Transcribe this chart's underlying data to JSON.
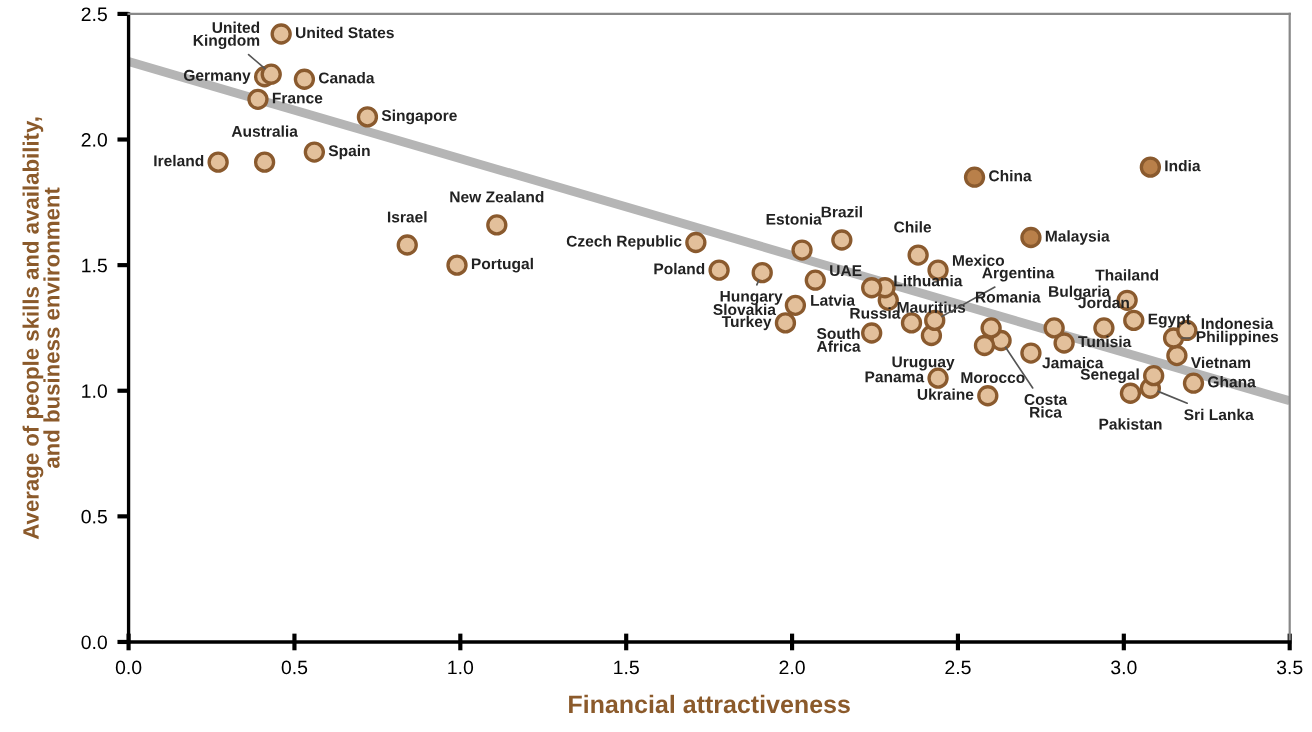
{
  "chart_data": {
    "type": "scatter",
    "xlabel": "Financial attractiveness",
    "ylabel": "Average of people skills and availability,\nand business environment",
    "xlim": [
      0,
      3.5
    ],
    "xticks": [
      {
        "value": 0,
        "label": "0.0"
      },
      0.5,
      {
        "value": 1,
        "label": "1.0"
      },
      1.5,
      {
        "value": 2,
        "label": "2.0"
      },
      2.5,
      {
        "value": 3,
        "label": "3.0"
      },
      3.5
    ],
    "ylim": [
      0,
      2.5
    ],
    "yticks": [
      {
        "value": 0,
        "label": "0.0"
      },
      0.5,
      {
        "value": 1,
        "label": "1.0"
      },
      1.5,
      {
        "value": 2,
        "label": "2.0"
      },
      2.5
    ],
    "grid": false,
    "legend": false,
    "marker": "circle",
    "series": [
      {
        "type": "line",
        "marker": "none",
        "color": "#b5b5b5",
        "x": [
          0,
          3.5
        ],
        "values": [
          2.31,
          0.96
        ]
      },
      {
        "x": [
          0.46,
          0.43,
          0.41,
          0.53,
          0.39,
          0.72,
          0.27,
          0.41,
          0.56,
          0.84,
          1.11,
          0.99,
          1.71,
          1.78,
          1.91,
          2.03,
          2.15,
          2.07,
          2.01,
          1.98,
          2.24,
          2.28,
          2.29,
          2.24,
          2.36,
          2.38,
          2.44,
          2.44,
          2.55,
          3.08,
          2.72,
          2.43,
          2.42,
          2.59,
          2.6,
          2.58,
          2.63,
          2.72,
          2.79,
          2.82,
          2.94,
          3.01,
          3.03,
          3.19,
          3.15,
          3.16,
          3.21,
          3.09,
          3.08,
          3.02
        ],
        "values": [
          2.42,
          2.26,
          2.25,
          2.24,
          2.16,
          2.09,
          1.91,
          1.91,
          1.95,
          1.58,
          1.66,
          1.5,
          1.59,
          1.48,
          1.47,
          1.56,
          1.6,
          1.44,
          1.34,
          1.27,
          1.41,
          1.41,
          1.36,
          1.23,
          1.27,
          1.54,
          1.48,
          1.05,
          1.85,
          1.89,
          1.61,
          1.28,
          1.22,
          0.98,
          1.25,
          1.18,
          1.2,
          1.15,
          1.25,
          1.19,
          1.25,
          1.36,
          1.28,
          1.24,
          1.21,
          1.14,
          1.03,
          1.06,
          1.01,
          0.99
        ],
        "colors": [
          "#e3c09b",
          "#e3c09b",
          "#e3c09b",
          "#e3c09b",
          "#e3c09b",
          "#e3c09b",
          "#e3c09b",
          "#e3c09b",
          "#e3c09b",
          "#e3c09b",
          "#e3c09b",
          "#e3c09b",
          "#e3c09b",
          "#e3c09b",
          "#e3c09b",
          "#e3c09b",
          "#e3c09b",
          "#e3c09b",
          "#e3c09b",
          "#e3c09b",
          "#e3c09b",
          "#e3c09b",
          "#e3c09b",
          "#e3c09b",
          "#e3c09b",
          "#e3c09b",
          "#e3c09b",
          "#e3c09b",
          "#b9804a",
          "#b9804a",
          "#b9804a",
          "#e3c09b",
          "#e3c09b",
          "#e3c09b",
          "#e3c09b",
          "#e3c09b",
          "#e3c09b",
          "#e3c09b",
          "#e3c09b",
          "#e3c09b",
          "#e3c09b",
          "#e3c09b",
          "#e3c09b",
          "#e3c09b",
          "#e3c09b",
          "#e3c09b",
          "#e3c09b",
          "#e3c09b",
          "#e3c09b",
          "#e3c09b"
        ]
      }
    ],
    "annotations": [
      {
        "text": "United States",
        "x": 0.46,
        "y": 2.42
      },
      {
        "text": "United\nKingdom",
        "x": 0.43,
        "y": 2.26
      },
      {
        "text": "Germany",
        "x": 0.41,
        "y": 2.25
      },
      {
        "text": "Canada",
        "x": 0.53,
        "y": 2.24
      },
      {
        "text": "France",
        "x": 0.39,
        "y": 2.16
      },
      {
        "text": "Singapore",
        "x": 0.72,
        "y": 2.09
      },
      {
        "text": "Ireland",
        "x": 0.27,
        "y": 1.91
      },
      {
        "text": "Australia",
        "x": 0.41,
        "y": 1.91
      },
      {
        "text": "Spain",
        "x": 0.56,
        "y": 1.95
      },
      {
        "text": "Israel",
        "x": 0.84,
        "y": 1.58
      },
      {
        "text": "New Zealand",
        "x": 1.11,
        "y": 1.66
      },
      {
        "text": "Portugal",
        "x": 0.99,
        "y": 1.5
      },
      {
        "text": "Czech Republic",
        "x": 1.71,
        "y": 1.59
      },
      {
        "text": "Poland",
        "x": 1.78,
        "y": 1.48
      },
      {
        "text": "Hungary",
        "x": 1.91,
        "y": 1.47
      },
      {
        "text": "Estonia",
        "x": 2.03,
        "y": 1.56
      },
      {
        "text": "Brazil",
        "x": 2.15,
        "y": 1.6
      },
      {
        "text": "UAE",
        "x": 2.07,
        "y": 1.44
      },
      {
        "text": "Slovakia",
        "x": 2.01,
        "y": 1.34
      },
      {
        "text": "Turkey",
        "x": 1.98,
        "y": 1.27
      },
      {
        "text": "Latvia",
        "x": 2.24,
        "y": 1.41
      },
      {
        "text": "Lithuania",
        "x": 2.28,
        "y": 1.41
      },
      {
        "text": "Mauritius",
        "x": 2.29,
        "y": 1.36
      },
      {
        "text": "South\nAfrica",
        "x": 2.24,
        "y": 1.23
      },
      {
        "text": "Russia",
        "x": 2.36,
        "y": 1.27
      },
      {
        "text": "Chile",
        "x": 2.38,
        "y": 1.54
      },
      {
        "text": "Mexico",
        "x": 2.44,
        "y": 1.48
      },
      {
        "text": "Panama",
        "x": 2.44,
        "y": 1.05
      },
      {
        "text": "China",
        "x": 2.55,
        "y": 1.85
      },
      {
        "text": "India",
        "x": 3.08,
        "y": 1.89
      },
      {
        "text": "Malaysia",
        "x": 2.72,
        "y": 1.61
      },
      {
        "text": "Argentina",
        "x": 2.43,
        "y": 1.28
      },
      {
        "text": "Uruguay",
        "x": 2.42,
        "y": 1.22
      },
      {
        "text": "Ukraine",
        "x": 2.59,
        "y": 0.98
      },
      {
        "text": "Romania",
        "x": 2.6,
        "y": 1.25
      },
      {
        "text": "Morocco",
        "x": 2.58,
        "y": 1.18
      },
      {
        "text": "Costa\nRica",
        "x": 2.63,
        "y": 1.2
      },
      {
        "text": "Jamaica",
        "x": 2.72,
        "y": 1.15
      },
      {
        "text": "Bulgaria",
        "x": 2.79,
        "y": 1.25
      },
      {
        "text": "Tunisia",
        "x": 2.82,
        "y": 1.19
      },
      {
        "text": "Jordan",
        "x": 2.94,
        "y": 1.25
      },
      {
        "text": "Thailand",
        "x": 3.01,
        "y": 1.36
      },
      {
        "text": "Egypt",
        "x": 3.03,
        "y": 1.28
      },
      {
        "text": "Indonesia",
        "x": 3.19,
        "y": 1.24
      },
      {
        "text": "Philippines",
        "x": 3.15,
        "y": 1.21
      },
      {
        "text": "Vietnam",
        "x": 3.16,
        "y": 1.14
      },
      {
        "text": "Ghana",
        "x": 3.21,
        "y": 1.03
      },
      {
        "text": "Senegal",
        "x": 3.09,
        "y": 1.06
      },
      {
        "text": "Sri Lanka",
        "x": 3.08,
        "y": 1.01
      },
      {
        "text": "Pakistan",
        "x": 3.02,
        "y": 0.99
      }
    ]
  }
}
